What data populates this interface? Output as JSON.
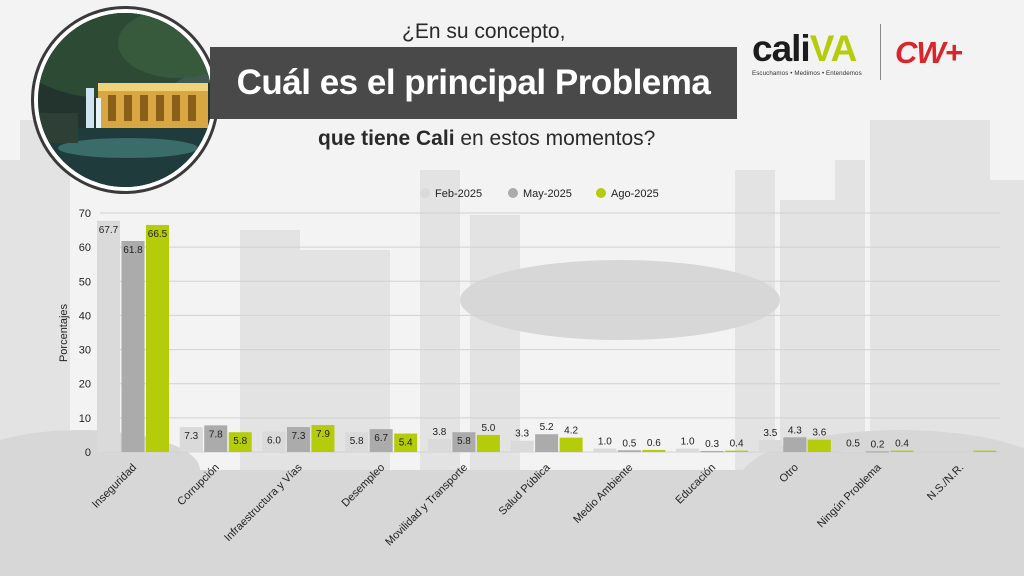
{
  "header": {
    "question_top": "¿En su concepto,",
    "title": "Cuál es el principal Problema",
    "question_bottom_bold": "que tiene Cali",
    "question_bottom_rest": " en estos momentos?"
  },
  "logos": {
    "cali_word_a": "cali",
    "cali_word_b": "VA",
    "cali_tagline": "Escuchamos • Medimos • Entendemos",
    "cw_text": "CW+"
  },
  "colors": {
    "title_band": "#494949",
    "accent_green": "#b5cc0b",
    "brand_red": "#d9262c"
  },
  "chart_data": {
    "type": "bar",
    "categories": [
      "Inseguridad",
      "Corrupción",
      "Infraestructura y Vías",
      "Desempleo",
      "Movilidad y Transporte",
      "Salud Pública",
      "Medio Ambiente",
      "Educación",
      "Otro",
      "Ningún Problema",
      "N.S./N.R."
    ],
    "series": [
      {
        "name": "Feb-2025",
        "color": "#dadada",
        "values": [
          67.7,
          7.3,
          6.0,
          5.8,
          3.8,
          3.3,
          1.0,
          1.0,
          3.5,
          0.5,
          null
        ]
      },
      {
        "name": "May-2025",
        "color": "#ababab",
        "values": [
          61.8,
          7.8,
          7.3,
          6.7,
          5.8,
          5.2,
          0.5,
          0.3,
          4.3,
          0.2,
          null
        ]
      },
      {
        "name": "Ago-2025",
        "color": "#b5cc0b",
        "values": [
          66.5,
          5.8,
          7.9,
          5.4,
          5.0,
          4.2,
          0.6,
          0.4,
          3.6,
          0.4,
          0.4
        ]
      }
    ],
    "data_labels": [
      [
        "67.7",
        "7.3",
        "6.0",
        "5.8",
        "3.8",
        "3.3",
        "1.0",
        "1.0",
        "3.5",
        "0.5",
        ""
      ],
      [
        "61.8",
        "7.8",
        "7.3",
        "6.7",
        "5.8",
        "5.2",
        "0.5",
        "0.3",
        "4.3",
        "0.2",
        ""
      ],
      [
        "66.5",
        "5.8",
        "7.9",
        "5.4",
        "5.0",
        "4.2",
        "0.6",
        "0.4",
        "3.6",
        "0.4",
        ""
      ]
    ],
    "ylabel": "Porcentajes",
    "ylim": [
      0,
      70
    ],
    "yticks": [
      0,
      10,
      20,
      30,
      40,
      50,
      60,
      70
    ],
    "grid": true,
    "legend_position": "top-center"
  }
}
